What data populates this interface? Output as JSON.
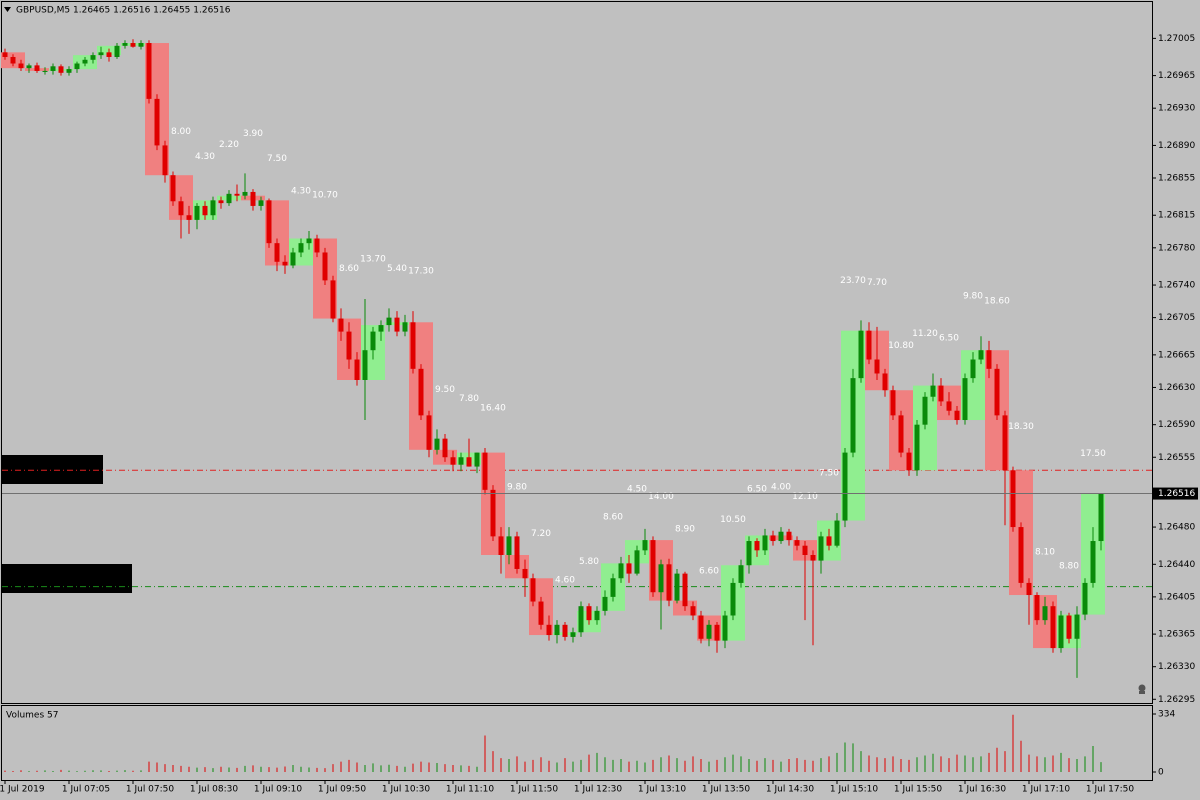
{
  "chart_data": {
    "type": "candlestick",
    "title": "GBPUSD,M5  1.26465 1.26516 1.26455 1.26516",
    "ylim": [
      1.26291,
      1.27043
    ],
    "yticks": [
      {
        "value": 1.27005,
        "label": "1.27005"
      },
      {
        "value": 1.26965,
        "label": "1.26965"
      },
      {
        "value": 1.2693,
        "label": "1.26930"
      },
      {
        "value": 1.2689,
        "label": "1.26890"
      },
      {
        "value": 1.26855,
        "label": "1.26855"
      },
      {
        "value": 1.26815,
        "label": "1.26815"
      },
      {
        "value": 1.2678,
        "label": "1.26780"
      },
      {
        "value": 1.2674,
        "label": "1.26740"
      },
      {
        "value": 1.26705,
        "label": "1.26705"
      },
      {
        "value": 1.26665,
        "label": "1.26665"
      },
      {
        "value": 1.2663,
        "label": "1.26630"
      },
      {
        "value": 1.2659,
        "label": "1.26590"
      },
      {
        "value": 1.26555,
        "label": "1.26555"
      },
      {
        "value": 1.2648,
        "label": "1.26480"
      },
      {
        "value": 1.2644,
        "label": "1.26440"
      },
      {
        "value": 1.26405,
        "label": "1.26405"
      },
      {
        "value": 1.26365,
        "label": "1.26365"
      },
      {
        "value": 1.2633,
        "label": "1.26330"
      },
      {
        "value": 1.26295,
        "label": "1.26295"
      }
    ],
    "last_price": 1.26516,
    "levels": [
      {
        "value": 1.26541,
        "color": "#e02020"
      },
      {
        "value": 1.26416,
        "color": "#1a8a1a"
      }
    ],
    "up_color": "#0a8a0a",
    "down_color": "#e00000",
    "box_up_color": "#90ee90",
    "box_down_color": "#f08080",
    "categories": [
      "1 Jul 2019",
      null,
      null,
      null,
      null,
      null,
      null,
      null,
      "1 Jul 07:05",
      null,
      null,
      null,
      null,
      null,
      null,
      null,
      "1 Jul 07:50",
      null,
      null,
      null,
      null,
      null,
      null,
      null,
      "1 Jul 08:30",
      null,
      null,
      null,
      null,
      null,
      null,
      null,
      "1 Jul 09:10",
      null,
      null,
      null,
      null,
      null,
      null,
      null,
      "1 Jul 09:50",
      null,
      null,
      null,
      null,
      null,
      null,
      null,
      "1 Jul 10:30",
      null,
      null,
      null,
      null,
      null,
      null,
      null,
      "1 Jul 11:10",
      null,
      null,
      null,
      null,
      null,
      null,
      null,
      "1 Jul 11:50",
      null,
      null,
      null,
      null,
      null,
      null,
      null,
      "1 Jul 12:30",
      null,
      null,
      null,
      null,
      null,
      null,
      null,
      "1 Jul 13:10",
      null,
      null,
      null,
      null,
      null,
      null,
      null,
      "1 Jul 13:50",
      null,
      null,
      null,
      null,
      null,
      null,
      null,
      "1 Jul 14:30",
      null,
      null,
      null,
      null,
      null,
      null,
      null,
      "1 Jul 15:10",
      null,
      null,
      null,
      null,
      null,
      null,
      null,
      "1 Jul 15:50",
      null,
      null,
      null,
      null,
      null,
      null,
      null,
      "1 Jul 16:30",
      null,
      null,
      null,
      null,
      null,
      null,
      null,
      "1 Jul 17:10",
      null,
      null,
      null,
      null,
      null,
      null,
      null,
      "1 Jul 17:50",
      null
    ],
    "candles": [
      [
        1.2699,
        1.26994,
        1.26982,
        1.26985
      ],
      [
        1.26985,
        1.26988,
        1.26975,
        1.26978
      ],
      [
        1.26978,
        1.26982,
        1.2697,
        1.26973
      ],
      [
        1.26973,
        1.26978,
        1.26968,
        1.26976
      ],
      [
        1.26976,
        1.26979,
        1.26968,
        1.2697
      ],
      [
        1.2697,
        1.26974,
        1.26966,
        1.2697
      ],
      [
        1.2697,
        1.26978,
        1.26966,
        1.26975
      ],
      [
        1.26975,
        1.26977,
        1.26965,
        1.26968
      ],
      [
        1.26968,
        1.26975,
        1.26965,
        1.26972
      ],
      [
        1.26972,
        1.2698,
        1.26968,
        1.26978
      ],
      [
        1.26978,
        1.26985,
        1.26975,
        1.26982
      ],
      [
        1.26982,
        1.2699,
        1.26978,
        1.26987
      ],
      [
        1.26987,
        1.26996,
        1.26983,
        1.2699
      ],
      [
        1.2699,
        1.26994,
        1.2698,
        1.26985
      ],
      [
        1.26985,
        1.27,
        1.26983,
        1.26997
      ],
      [
        1.26997,
        1.27003,
        1.26994,
        1.27
      ],
      [
        1.27,
        1.27004,
        1.26995,
        1.26996
      ],
      [
        1.26996,
        1.27003,
        1.26993,
        1.27
      ],
      [
        1.27,
        1.27003,
        1.26935,
        1.2694
      ],
      [
        1.2694,
        1.26945,
        1.26885,
        1.2689
      ],
      [
        1.2689,
        1.26895,
        1.2685,
        1.26858
      ],
      [
        1.26858,
        1.26862,
        1.26825,
        1.2683
      ],
      [
        1.2683,
        1.26835,
        1.2679,
        1.26815
      ],
      [
        1.26815,
        1.26825,
        1.26795,
        1.2681
      ],
      [
        1.2681,
        1.26828,
        1.268,
        1.26825
      ],
      [
        1.26825,
        1.2683,
        1.2681,
        1.26815
      ],
      [
        1.26815,
        1.26835,
        1.2681,
        1.26831
      ],
      [
        1.26831,
        1.26835,
        1.26822,
        1.26828
      ],
      [
        1.26828,
        1.26842,
        1.26825,
        1.26838
      ],
      [
        1.26838,
        1.26848,
        1.2683,
        1.26836
      ],
      [
        1.26836,
        1.2686,
        1.26832,
        1.2684
      ],
      [
        1.2684,
        1.26843,
        1.2682,
        1.26825
      ],
      [
        1.26825,
        1.26835,
        1.2682,
        1.26831
      ],
      [
        1.26831,
        1.26833,
        1.2678,
        1.26785
      ],
      [
        1.26785,
        1.2679,
        1.26755,
        1.26765
      ],
      [
        1.26765,
        1.26772,
        1.26752,
        1.26761
      ],
      [
        1.26761,
        1.2678,
        1.26758,
        1.26775
      ],
      [
        1.26775,
        1.2679,
        1.2677,
        1.26785
      ],
      [
        1.26785,
        1.26798,
        1.26778,
        1.2679
      ],
      [
        1.2679,
        1.26794,
        1.2677,
        1.26775
      ],
      [
        1.26775,
        1.2678,
        1.2674,
        1.26745
      ],
      [
        1.26745,
        1.2675,
        1.267,
        1.26704
      ],
      [
        1.26704,
        1.26715,
        1.2668,
        1.2669
      ],
      [
        1.2669,
        1.267,
        1.2665,
        1.2666
      ],
      [
        1.2666,
        1.26668,
        1.26632,
        1.26638
      ],
      [
        1.26638,
        1.26725,
        1.26595,
        1.2667
      ],
      [
        1.2667,
        1.26695,
        1.2666,
        1.2669
      ],
      [
        1.2669,
        1.26702,
        1.2668,
        1.26697
      ],
      [
        1.26697,
        1.26715,
        1.2669,
        1.26705
      ],
      [
        1.26705,
        1.26712,
        1.26685,
        1.2669
      ],
      [
        1.2669,
        1.26708,
        1.26685,
        1.267
      ],
      [
        1.267,
        1.26712,
        1.26645,
        1.2665
      ],
      [
        1.2665,
        1.26655,
        1.26595,
        1.266
      ],
      [
        1.266,
        1.26605,
        1.26555,
        1.26563
      ],
      [
        1.26563,
        1.26585,
        1.26558,
        1.26575
      ],
      [
        1.26575,
        1.2658,
        1.2655,
        1.26555
      ],
      [
        1.26555,
        1.26562,
        1.2654,
        1.26547
      ],
      [
        1.26547,
        1.2656,
        1.2654,
        1.26555
      ],
      [
        1.26555,
        1.26575,
        1.26545,
        1.26545
      ],
      [
        1.26545,
        1.2656,
        1.26538,
        1.2656
      ],
      [
        1.2656,
        1.26565,
        1.26515,
        1.2652
      ],
      [
        1.2652,
        1.26525,
        1.26465,
        1.2647
      ],
      [
        1.2647,
        1.2648,
        1.2643,
        1.2645
      ],
      [
        1.2645,
        1.2648,
        1.2644,
        1.2647
      ],
      [
        1.2647,
        1.26475,
        1.2643,
        1.26435
      ],
      [
        1.26435,
        1.26445,
        1.26405,
        1.26425
      ],
      [
        1.26425,
        1.2643,
        1.26395,
        1.264
      ],
      [
        1.264,
        1.26405,
        1.2637,
        1.26375
      ],
      [
        1.26375,
        1.26385,
        1.26358,
        1.26364
      ],
      [
        1.26364,
        1.2638,
        1.26355,
        1.26375
      ],
      [
        1.26375,
        1.26378,
        1.26358,
        1.26362
      ],
      [
        1.26362,
        1.26372,
        1.26356,
        1.26367
      ],
      [
        1.26367,
        1.264,
        1.26362,
        1.26395
      ],
      [
        1.26395,
        1.26398,
        1.26375,
        1.2638
      ],
      [
        1.2638,
        1.26395,
        1.26375,
        1.2639
      ],
      [
        1.2639,
        1.26412,
        1.26385,
        1.26405
      ],
      [
        1.26405,
        1.2643,
        1.264,
        1.26425
      ],
      [
        1.26425,
        1.26448,
        1.2642,
        1.26441
      ],
      [
        1.26441,
        1.2645,
        1.2642,
        1.2643
      ],
      [
        1.2643,
        1.2646,
        1.26428,
        1.26455
      ],
      [
        1.26455,
        1.26478,
        1.2645,
        1.26466
      ],
      [
        1.26466,
        1.2647,
        1.26405,
        1.2641
      ],
      [
        1.2641,
        1.26445,
        1.2637,
        1.2644
      ],
      [
        1.2644,
        1.26446,
        1.26395,
        1.26401
      ],
      [
        1.26401,
        1.26435,
        1.26398,
        1.2643
      ],
      [
        1.2643,
        1.26432,
        1.2639,
        1.26395
      ],
      [
        1.26395,
        1.264,
        1.2638,
        1.26385
      ],
      [
        1.26385,
        1.2639,
        1.26355,
        1.2636
      ],
      [
        1.2636,
        1.2638,
        1.26352,
        1.26375
      ],
      [
        1.26375,
        1.26378,
        1.26345,
        1.26358
      ],
      [
        1.26358,
        1.2639,
        1.2635,
        1.26385
      ],
      [
        1.26385,
        1.26425,
        1.2638,
        1.2642
      ],
      [
        1.2642,
        1.26445,
        1.26415,
        1.26439
      ],
      [
        1.26439,
        1.2647,
        1.2643,
        1.26465
      ],
      [
        1.26465,
        1.26468,
        1.26448,
        1.26455
      ],
      [
        1.26455,
        1.26478,
        1.2645,
        1.26471
      ],
      [
        1.26471,
        1.26476,
        1.2646,
        1.26465
      ],
      [
        1.26465,
        1.2648,
        1.26462,
        1.26475
      ],
      [
        1.26475,
        1.26478,
        1.2646,
        1.26466
      ],
      [
        1.26466,
        1.2647,
        1.26455,
        1.2646
      ],
      [
        1.2646,
        1.26465,
        1.2638,
        1.2645
      ],
      [
        1.2645,
        1.26455,
        1.26353,
        1.26444
      ],
      [
        1.26444,
        1.26475,
        1.2643,
        1.2647
      ],
      [
        1.2647,
        1.26478,
        1.26455,
        1.2646
      ],
      [
        1.2646,
        1.26495,
        1.26458,
        1.26487
      ],
      [
        1.26487,
        1.26565,
        1.2648,
        1.2656
      ],
      [
        1.2656,
        1.2665,
        1.26555,
        1.2664
      ],
      [
        1.2664,
        1.26702,
        1.26635,
        1.26691
      ],
      [
        1.26691,
        1.267,
        1.26655,
        1.2666
      ],
      [
        1.2666,
        1.26695,
        1.26638,
        1.26645
      ],
      [
        1.26645,
        1.2665,
        1.2662,
        1.26627
      ],
      [
        1.26627,
        1.26632,
        1.26595,
        1.266
      ],
      [
        1.266,
        1.26605,
        1.26555,
        1.2656
      ],
      [
        1.2656,
        1.26565,
        1.26535,
        1.26541
      ],
      [
        1.26541,
        1.26595,
        1.26535,
        1.2659
      ],
      [
        1.2659,
        1.26625,
        1.26585,
        1.2662
      ],
      [
        1.2662,
        1.26645,
        1.26615,
        1.26632
      ],
      [
        1.26632,
        1.2664,
        1.2661,
        1.26615
      ],
      [
        1.26615,
        1.26625,
        1.266,
        1.26605
      ],
      [
        1.26605,
        1.2661,
        1.2659,
        1.26595
      ],
      [
        1.26595,
        1.26645,
        1.2659,
        1.2664
      ],
      [
        1.2664,
        1.26668,
        1.26635,
        1.2666
      ],
      [
        1.2666,
        1.26685,
        1.26655,
        1.2667
      ],
      [
        1.2667,
        1.2668,
        1.2664,
        1.2665
      ],
      [
        1.2665,
        1.26655,
        1.26595,
        1.266
      ],
      [
        1.266,
        1.26605,
        1.26482,
        1.26541
      ],
      [
        1.26541,
        1.26545,
        1.26475,
        1.2648
      ],
      [
        1.2648,
        1.26485,
        1.26415,
        1.2642
      ],
      [
        1.2642,
        1.26425,
        1.26375,
        1.26407
      ],
      [
        1.26407,
        1.2641,
        1.26375,
        1.2638
      ],
      [
        1.2638,
        1.26405,
        1.26375,
        1.26395
      ],
      [
        1.26395,
        1.264,
        1.26345,
        1.2635
      ],
      [
        1.2635,
        1.2639,
        1.26345,
        1.26385
      ],
      [
        1.26385,
        1.26388,
        1.26355,
        1.2636
      ],
      [
        1.2636,
        1.26395,
        1.26318,
        1.26386
      ],
      [
        1.26386,
        1.26425,
        1.2638,
        1.2642
      ],
      [
        1.2642,
        1.2648,
        1.26415,
        1.26465
      ],
      [
        1.26465,
        1.26516,
        1.26455,
        1.26516
      ]
    ],
    "box_ranges": [
      null,
      null,
      null,
      null,
      null,
      null,
      null,
      {
        "value": 8,
        "label": "8.00"
      },
      {
        "value": 4.3,
        "label": "4.30"
      },
      {
        "value": 2.2,
        "label": "2.20"
      },
      {
        "value": 3.9,
        "label": "3.90"
      },
      {
        "value": 7.5,
        "label": "7.50"
      },
      {
        "value": 4.3,
        "label": "4.30"
      },
      {
        "value": 10.7,
        "label": "10.70"
      },
      {
        "value": 8.6,
        "label": "8.60"
      },
      {
        "value": 13.7,
        "label": "13.70"
      },
      {
        "value": 5.4,
        "label": "5.40"
      },
      {
        "value": 17.3,
        "label": "17.30"
      },
      {
        "value": 9.5,
        "label": "9.50"
      },
      {
        "value": 7.8,
        "label": "7.80"
      },
      {
        "value": 16.4,
        "label": "16.40"
      },
      {
        "value": 9.8,
        "label": "9.80"
      },
      {
        "value": 7.2,
        "label": "7.20"
      },
      {
        "value": 4.6,
        "label": "4.60"
      },
      {
        "value": 5.8,
        "label": "5.80"
      },
      {
        "value": 8.6,
        "label": "8.60"
      },
      {
        "value": 4.5,
        "label": "4.50"
      },
      {
        "value": 14,
        "label": "14.00"
      },
      {
        "value": 8.9,
        "label": "8.90"
      },
      {
        "value": 6.6,
        "label": "6.60"
      },
      {
        "value": 10.5,
        "label": "10.50"
      },
      {
        "value": 6.5,
        "label": "6.50"
      },
      {
        "value": 4,
        "label": "4.00"
      },
      {
        "value": 12.1,
        "label": "12.10"
      },
      {
        "value": 7.5,
        "label": "7.50"
      },
      {
        "value": 23.7,
        "label": "23.70"
      },
      {
        "value": 7.7,
        "label": "7.70"
      },
      {
        "value": 10.8,
        "label": "10.80"
      },
      {
        "value": 11.2,
        "label": "11.20"
      },
      {
        "value": 6.5,
        "label": "6.50"
      },
      {
        "value": 9.8,
        "label": "9.80"
      },
      {
        "value": 18.6,
        "label": "18.60"
      },
      {
        "value": 18.3,
        "label": "18.30"
      },
      {
        "value": 8.1,
        "label": "8.10"
      },
      {
        "value": 8.8,
        "label": "8.80"
      },
      {
        "value": 17.5,
        "label": "17.50"
      }
    ],
    "volume": {
      "title": "Volumes 57",
      "ylim": [
        0,
        334
      ],
      "yticks": [
        0,
        334
      ],
      "values": [
        8,
        6,
        10,
        5,
        7,
        9,
        6,
        12,
        8,
        5,
        7,
        10,
        9,
        6,
        8,
        11,
        7,
        9,
        60,
        55,
        45,
        40,
        35,
        30,
        25,
        28,
        22,
        30,
        26,
        24,
        35,
        38,
        30,
        28,
        25,
        32,
        40,
        30,
        26,
        24,
        22,
        45,
        60,
        70,
        55,
        40,
        50,
        38,
        42,
        35,
        30,
        48,
        60,
        55,
        52,
        45,
        40,
        38,
        35,
        30,
        210,
        120,
        80,
        75,
        90,
        60,
        70,
        85,
        65,
        55,
        80,
        60,
        70,
        100,
        110,
        85,
        70,
        75,
        60,
        65,
        55,
        70,
        85,
        95,
        80,
        65,
        90,
        75,
        60,
        70,
        85,
        100,
        90,
        75,
        65,
        80,
        70,
        60,
        75,
        80,
        70,
        65,
        80,
        90,
        110,
        170,
        165,
        120,
        95,
        85,
        80,
        90,
        75,
        70,
        85,
        95,
        105,
        90,
        80,
        100,
        95,
        85,
        90,
        110,
        140,
        120,
        330,
        180,
        100,
        90,
        85,
        95,
        110,
        80,
        75,
        90,
        150,
        57
      ]
    }
  }
}
